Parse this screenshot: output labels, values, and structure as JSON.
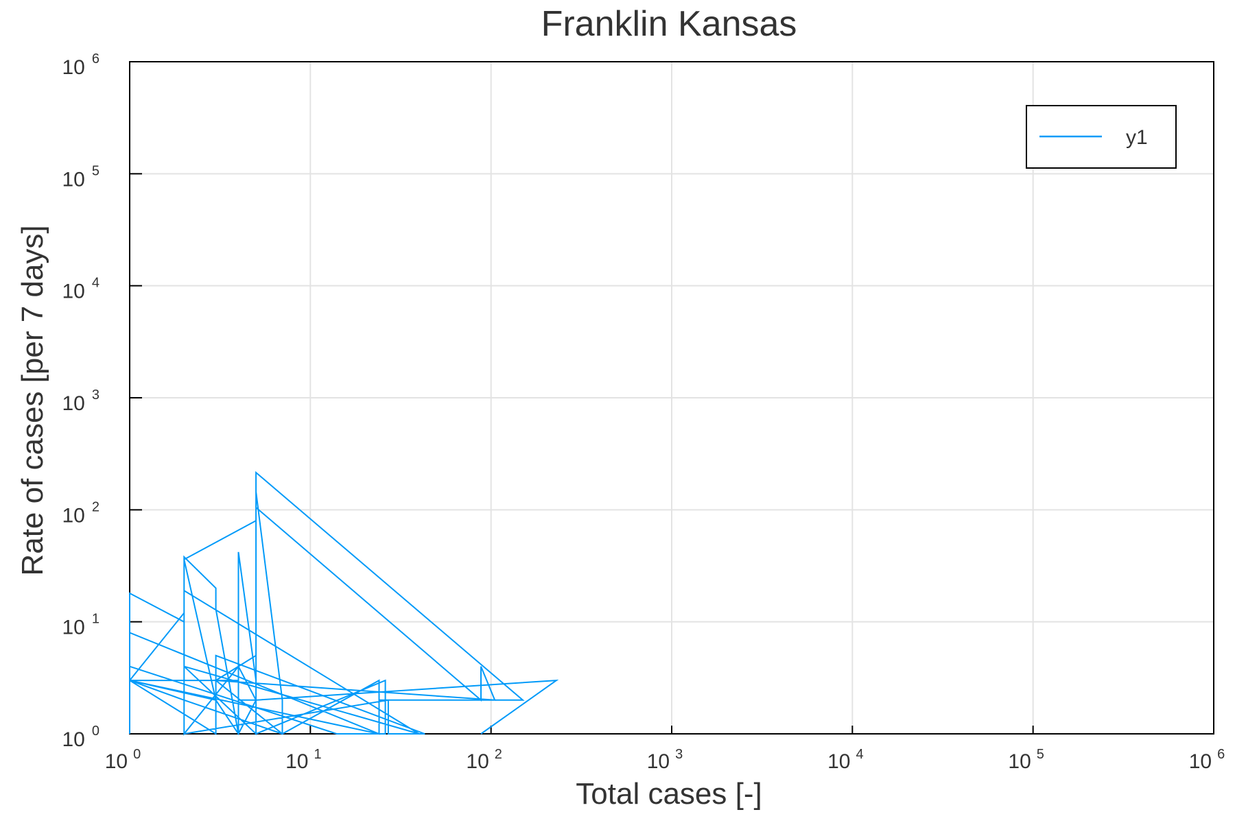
{
  "chart_data": {
    "type": "line",
    "title": "Franklin Kansas",
    "xlabel": "Total cases [-]",
    "ylabel": "Rate of cases [per 7 days]",
    "xscale": "log",
    "yscale": "log",
    "xlim": [
      1,
      1000000
    ],
    "ylim": [
      1,
      1000000
    ],
    "xticks": [
      {
        "base": "10",
        "exp": "0"
      },
      {
        "base": "10",
        "exp": "1"
      },
      {
        "base": "10",
        "exp": "2"
      },
      {
        "base": "10",
        "exp": "3"
      },
      {
        "base": "10",
        "exp": "4"
      },
      {
        "base": "10",
        "exp": "5"
      },
      {
        "base": "10",
        "exp": "6"
      }
    ],
    "yticks": [
      {
        "base": "10",
        "exp": "0"
      },
      {
        "base": "10",
        "exp": "1"
      },
      {
        "base": "10",
        "exp": "2"
      },
      {
        "base": "10",
        "exp": "3"
      },
      {
        "base": "10",
        "exp": "4"
      },
      {
        "base": "10",
        "exp": "5"
      },
      {
        "base": "10",
        "exp": "6"
      }
    ],
    "grid": true,
    "legend": {
      "position": "top-right",
      "entries": [
        "y1"
      ]
    },
    "series": [
      {
        "name": "y1",
        "color": "#009af9",
        "x": [
          1,
          1,
          2,
          2,
          3,
          3,
          4,
          4,
          5,
          5,
          2,
          3,
          1,
          1,
          2,
          2,
          4,
          5,
          5,
          7,
          7,
          24,
          24,
          1,
          1,
          3,
          3,
          5,
          5,
          26,
          26,
          14,
          1,
          1,
          4,
          4,
          5,
          5,
          88,
          88,
          105,
          3,
          7,
          2,
          2,
          40,
          40,
          2,
          5,
          5,
          150,
          150,
          24,
          24,
          1,
          2,
          2,
          27,
          27,
          43,
          43,
          3,
          3,
          4,
          4,
          5,
          230,
          230,
          88
        ],
        "y": [
          1,
          3,
          12,
          38,
          20,
          13,
          1,
          42,
          3,
          80,
          36,
          2,
          3,
          18,
          10,
          1,
          4,
          2,
          145,
          2,
          1,
          3,
          1,
          8,
          3,
          1,
          3,
          5,
          1,
          3,
          1,
          1,
          4,
          3,
          3,
          2,
          2,
          105,
          2,
          4,
          2,
          3,
          1,
          2,
          19,
          1,
          1,
          4,
          1,
          215,
          2,
          2,
          2,
          1,
          3,
          2,
          1,
          2,
          1,
          1,
          1,
          5,
          2,
          1,
          1,
          2,
          3,
          3,
          1
        ]
      }
    ]
  }
}
